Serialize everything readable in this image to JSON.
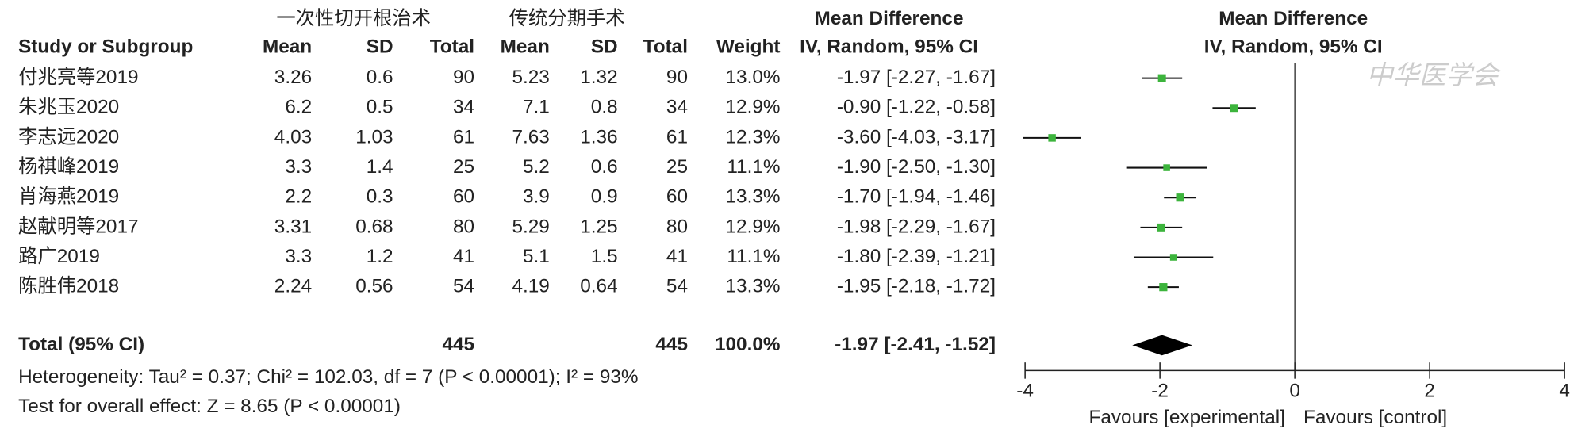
{
  "chart_data": {
    "type": "forest",
    "group_labels": [
      "一次性切开根治术",
      "传统分期手术"
    ],
    "column_headers": [
      "Study or Subgroup",
      "Mean",
      "SD",
      "Total",
      "Mean",
      "SD",
      "Total",
      "Weight",
      "IV, Random, 95% CI"
    ],
    "effect_title": "Mean Difference",
    "plot_title": "Mean Difference",
    "plot_subtitle": "IV, Random, 95% CI",
    "watermark": "中华医学会",
    "studies": [
      {
        "name": "付兆亮等2019",
        "exp": [
          3.26,
          0.6,
          90
        ],
        "ctrl": [
          5.23,
          1.32,
          90
        ],
        "weight": 13.0,
        "weight_label": "13.0%",
        "md": -1.97,
        "ci": [
          -2.27,
          -1.67
        ],
        "ci_label": "-1.97 [-2.27, -1.67]"
      },
      {
        "name": "朱兆玉2020",
        "exp": [
          6.2,
          0.5,
          34
        ],
        "ctrl": [
          7.1,
          0.8,
          34
        ],
        "weight": 12.9,
        "weight_label": "12.9%",
        "md": -0.9,
        "ci": [
          -1.22,
          -0.58
        ],
        "ci_label": "-0.90 [-1.22, -0.58]"
      },
      {
        "name": "李志远2020",
        "exp": [
          4.03,
          1.03,
          61
        ],
        "ctrl": [
          7.63,
          1.36,
          61
        ],
        "weight": 12.3,
        "weight_label": "12.3%",
        "md": -3.6,
        "ci": [
          -4.03,
          -3.17
        ],
        "ci_label": "-3.60 [-4.03, -3.17]"
      },
      {
        "name": "杨祺峰2019",
        "exp": [
          3.3,
          1.4,
          25
        ],
        "ctrl": [
          5.2,
          0.6,
          25
        ],
        "weight": 11.1,
        "weight_label": "11.1%",
        "md": -1.9,
        "ci": [
          -2.5,
          -1.3
        ],
        "ci_label": "-1.90 [-2.50, -1.30]"
      },
      {
        "name": "肖海燕2019",
        "exp": [
          2.2,
          0.3,
          60
        ],
        "ctrl": [
          3.9,
          0.9,
          60
        ],
        "weight": 13.3,
        "weight_label": "13.3%",
        "md": -1.7,
        "ci": [
          -1.94,
          -1.46
        ],
        "ci_label": "-1.70 [-1.94, -1.46]"
      },
      {
        "name": "赵献明等2017",
        "exp": [
          3.31,
          0.68,
          80
        ],
        "ctrl": [
          5.29,
          1.25,
          80
        ],
        "weight": 12.9,
        "weight_label": "12.9%",
        "md": -1.98,
        "ci": [
          -2.29,
          -1.67
        ],
        "ci_label": "-1.98 [-2.29, -1.67]"
      },
      {
        "name": "路广2019",
        "exp": [
          3.3,
          1.2,
          41
        ],
        "ctrl": [
          5.1,
          1.5,
          41
        ],
        "weight": 11.1,
        "weight_label": "11.1%",
        "md": -1.8,
        "ci": [
          -2.39,
          -1.21
        ],
        "ci_label": "-1.80 [-2.39, -1.21]"
      },
      {
        "name": "陈胜伟2018",
        "exp": [
          2.24,
          0.56,
          54
        ],
        "ctrl": [
          4.19,
          0.64,
          54
        ],
        "weight": 13.3,
        "weight_label": "13.3%",
        "md": -1.95,
        "ci": [
          -2.18,
          -1.72
        ],
        "ci_label": "-1.95 [-2.18, -1.72]"
      }
    ],
    "total": {
      "name": "Total (95% CI)",
      "exp_total": 445,
      "ctrl_total": 445,
      "weight": 100.0,
      "weight_label": "100.0%",
      "md": -1.97,
      "ci": [
        -2.41,
        -1.52
      ],
      "ci_label": "-1.97 [-2.41, -1.52]"
    },
    "heterogeneity": "Heterogeneity: Tau² = 0.37; Chi² = 102.03, df = 7 (P < 0.00001); I² = 93%",
    "overall_effect": "Test for overall effect: Z = 8.65 (P < 0.00001)",
    "xlim": [
      -4,
      4
    ],
    "xticks": [
      -4,
      -2,
      0,
      2,
      4
    ],
    "xlabels": [
      "Favours [experimental]",
      "Favours [control]"
    ],
    "marker_color": "#3cb43c"
  }
}
